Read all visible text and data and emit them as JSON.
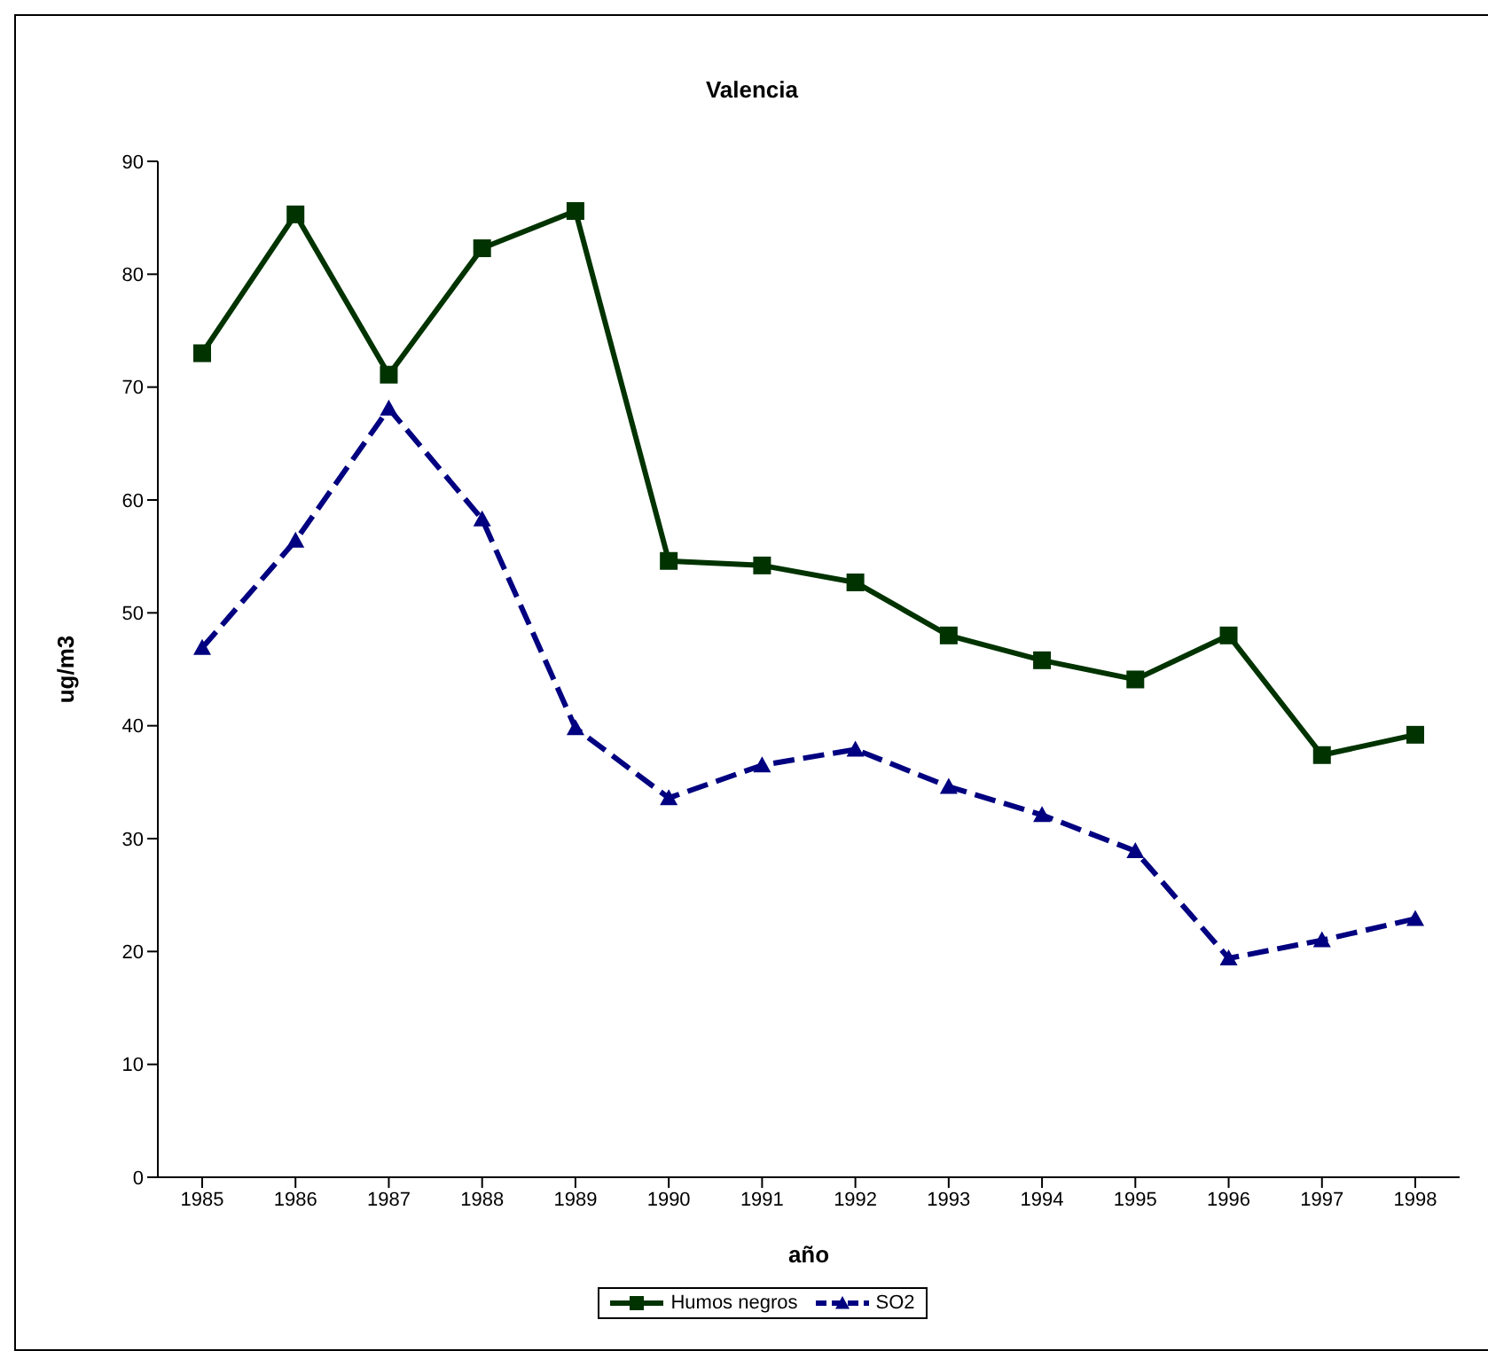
{
  "chart_data": {
    "type": "line",
    "title": "Valencia",
    "xlabel": "año",
    "ylabel": "ug/m3",
    "categories": [
      "1985",
      "1986",
      "1987",
      "1988",
      "1989",
      "1990",
      "1991",
      "1992",
      "1993",
      "1994",
      "1995",
      "1996",
      "1997",
      "1998"
    ],
    "series": [
      {
        "name": "Humos negros",
        "color": "#003300",
        "marker": "square",
        "line_style": "solid",
        "values": [
          73,
          85.3,
          71.1,
          82.3,
          85.6,
          54.6,
          54.2,
          52.7,
          48,
          45.8,
          44.1,
          48,
          37.4,
          39.2
        ]
      },
      {
        "name": "SO2",
        "color": "#000080",
        "marker": "triangle",
        "line_style": "dashed",
        "values": [
          46.9,
          56.4,
          68.1,
          58.3,
          39.8,
          33.6,
          36.5,
          37.9,
          34.6,
          32.1,
          28.9,
          19.4,
          21,
          22.9
        ]
      }
    ],
    "ylim": [
      0,
      90
    ],
    "yticks": [
      0,
      10,
      20,
      30,
      40,
      50,
      60,
      70,
      80,
      90
    ],
    "grid": false,
    "legend": "bottom"
  }
}
